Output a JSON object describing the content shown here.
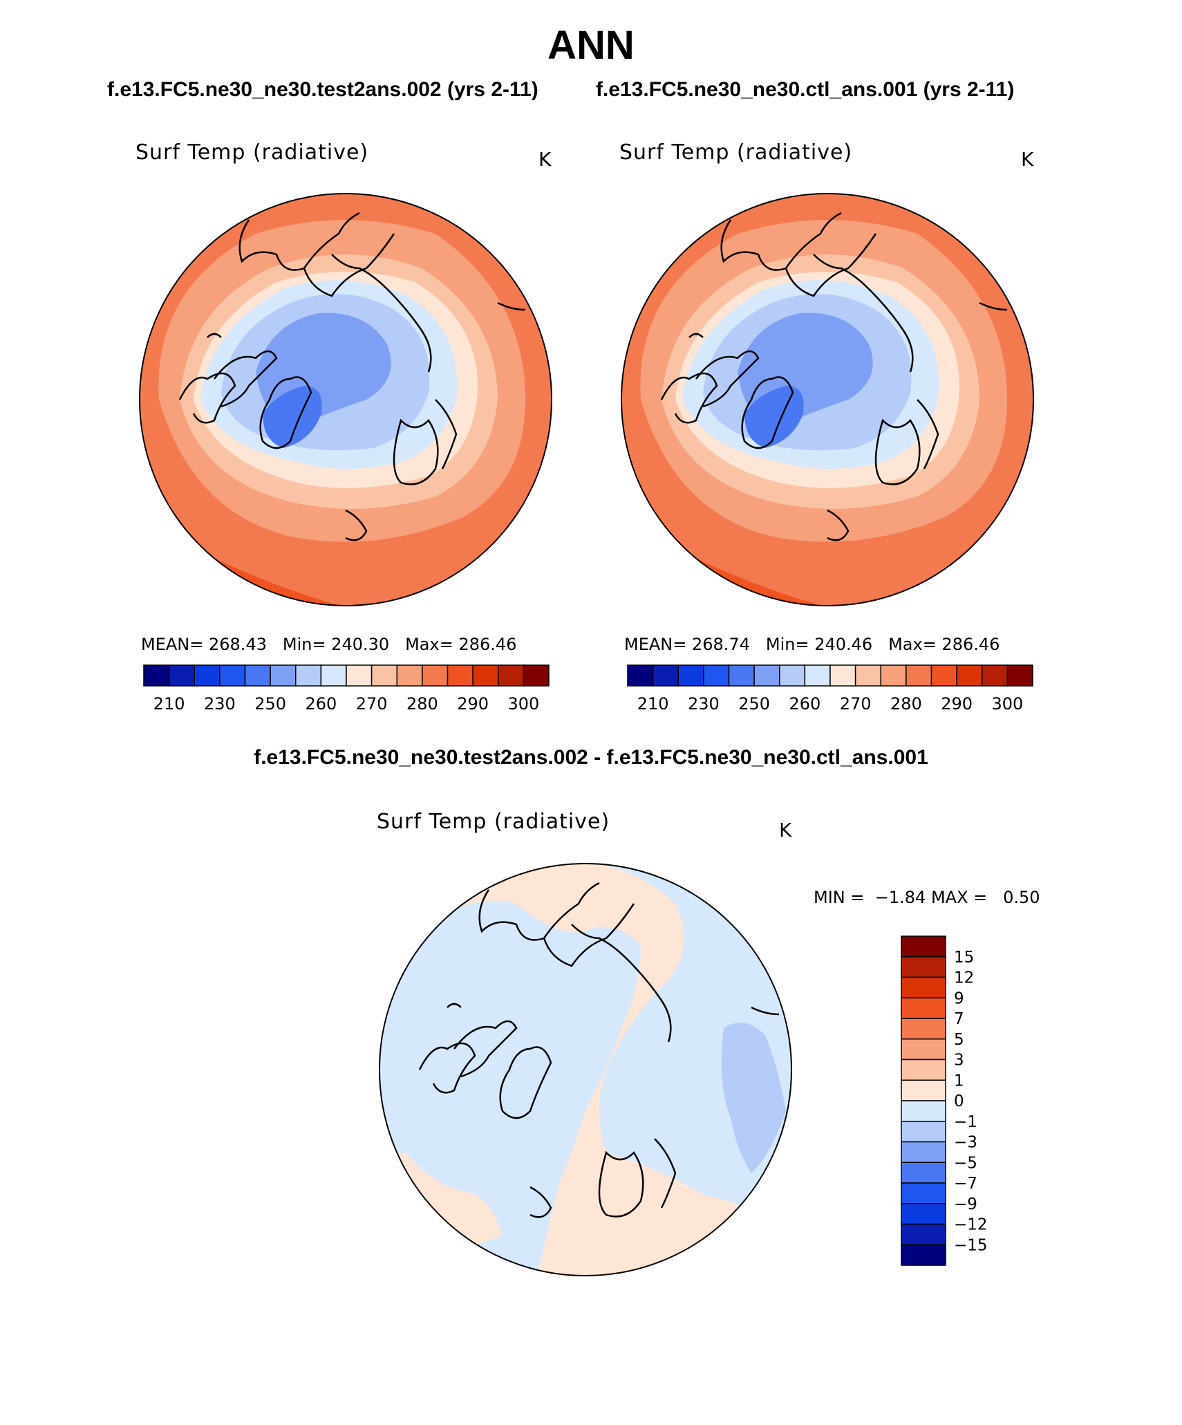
{
  "header": {
    "season": "ANN",
    "test_case": "f.e13.FC5.ne30_ne30.test2ans.002 (yrs 2-11)",
    "control_case": "f.e13.FC5.ne30_ne30.ctl_ans.001 (yrs 2-11)",
    "difference_title": "f.e13.FC5.ne30_ne30.test2ans.002 - f.e13.FC5.ne30_ne30.ctl_ans.001"
  },
  "panels": [
    {
      "variable": "Surf Temp (radiative)",
      "units": "K",
      "stats": {
        "mean_label": "MEAN=",
        "mean": "268.43",
        "min_label": "Min=",
        "min": "240.30",
        "max_label": "Max=",
        "max": "286.46"
      }
    },
    {
      "variable": "Surf Temp (radiative)",
      "units": "K",
      "stats": {
        "mean_label": "MEAN=",
        "mean": "268.74",
        "min_label": "Min=",
        "min": "240.46",
        "max_label": "Max=",
        "max": "286.46"
      }
    },
    {
      "variable": "Surf Temp (radiative)",
      "units": "K",
      "stats": {
        "min_label": "MIN =",
        "min": "−1.84",
        "max_label": "MAX =",
        "max": "0.50"
      }
    }
  ],
  "colorbars": {
    "absolute": {
      "colors": [
        "#00007f",
        "#0a1eb4",
        "#0b3ce0",
        "#1f56f0",
        "#4a78f2",
        "#7ea0f4",
        "#b5ccf8",
        "#d6e8fb",
        "#fde6d6",
        "#fbc3a6",
        "#f6a07c",
        "#f37a4f",
        "#ef5322",
        "#dc3505",
        "#b52005",
        "#800000"
      ],
      "tick_labels": [
        "210",
        "230",
        "250",
        "260",
        "270",
        "280",
        "290",
        "300"
      ]
    },
    "difference": {
      "colors": [
        "#800000",
        "#b52005",
        "#dc3505",
        "#ef5322",
        "#f37a4f",
        "#f6a07c",
        "#fbc3a6",
        "#fde6d6",
        "#d6e8fb",
        "#b5ccf8",
        "#7ea0f4",
        "#4a78f2",
        "#1f56f0",
        "#0b3ce0",
        "#0a1eb4",
        "#00007f"
      ],
      "tick_labels": [
        "15",
        "12",
        "9",
        "7",
        "5",
        "3",
        "1",
        "0",
        "−1",
        "−3",
        "−5",
        "−7",
        "−9",
        "−12",
        "−15"
      ]
    }
  },
  "map_fill_colors": {
    "warm_outer": "#f37a4f",
    "warm_mid": "#f6a07c",
    "warm_light": "#fbc3a6",
    "neutral_warm": "#fde6d6",
    "cool_light": "#d6e8fb",
    "cool_mid": "#b5ccf8",
    "cool_dark": "#7ea0f4",
    "cool_deep": "#4a78f2",
    "hot_edge": "#ef5322"
  }
}
